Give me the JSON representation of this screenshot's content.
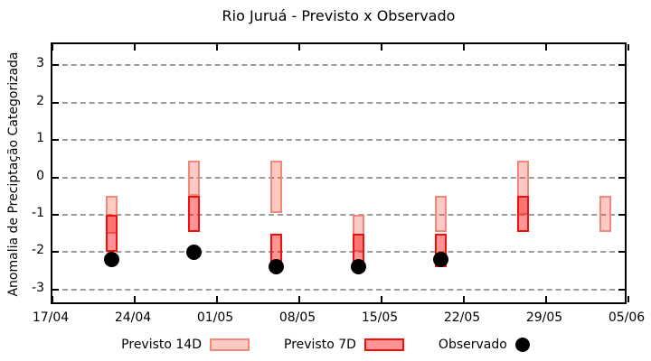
{
  "chart_data": {
    "type": "bar",
    "subtype": "range-bars-with-points",
    "title": "Rio Juruá - Previsto x Observado",
    "ylabel": "Anomalia de Preciptação Categorizada",
    "ylim": [
      -3.5,
      3.5
    ],
    "yticks": [
      3,
      2,
      1,
      0,
      -1,
      -2,
      -3
    ],
    "grid": true,
    "x_total_days": 49,
    "xticks": [
      {
        "label": "17/04",
        "day": 0
      },
      {
        "label": "24/04",
        "day": 7
      },
      {
        "label": "01/05",
        "day": 14
      },
      {
        "label": "08/05",
        "day": 21
      },
      {
        "label": "15/05",
        "day": 28
      },
      {
        "label": "22/05",
        "day": 35
      },
      {
        "label": "29/05",
        "day": 42
      },
      {
        "label": "05/06",
        "day": 49
      }
    ],
    "groups": [
      {
        "date": "22/04",
        "day": 5,
        "previsto14": [
          -0.5,
          -1.5
        ],
        "previsto7": [
          -1.0,
          -2.0
        ],
        "observado": -2.2
      },
      {
        "date": "29/04",
        "day": 12,
        "previsto14": [
          0.45,
          -0.5
        ],
        "previsto7": [
          -0.5,
          -1.45
        ],
        "observado": -2.0
      },
      {
        "date": "06/05",
        "day": 19,
        "previsto14": [
          0.45,
          -0.95
        ],
        "previsto7": [
          -1.5,
          -2.35
        ],
        "observado": -2.4
      },
      {
        "date": "13/05",
        "day": 26,
        "previsto14": [
          -1.0,
          -2.0
        ],
        "previsto7": [
          -1.5,
          -2.3
        ],
        "observado": -2.4
      },
      {
        "date": "20/05",
        "day": 33,
        "previsto14": [
          -0.5,
          -1.45
        ],
        "previsto7": [
          -1.5,
          -2.4
        ],
        "observado": -2.2
      },
      {
        "date": "27/05",
        "day": 40,
        "previsto14": [
          0.45,
          -1.0
        ],
        "previsto7": [
          -0.5,
          -1.45
        ],
        "observado": null
      },
      {
        "date": "03/06",
        "day": 47,
        "previsto14": [
          -0.5,
          -1.45
        ],
        "previsto7": null,
        "observado": null
      }
    ],
    "legend": [
      {
        "label": "Previsto 14D"
      },
      {
        "label": "Previsto 7D"
      },
      {
        "label": "Observado"
      }
    ],
    "legend_position": "bottom",
    "colors": {
      "previsto14_fill": "#ffcbc4",
      "previsto14_border": "#f0897b",
      "previsto7_fill": "#ff9494",
      "previsto7_border": "#f50f0c",
      "overlap_fill": "#f9625b",
      "observado": "#000000",
      "grid": "#9c9c9c",
      "axis": "#000000"
    }
  }
}
